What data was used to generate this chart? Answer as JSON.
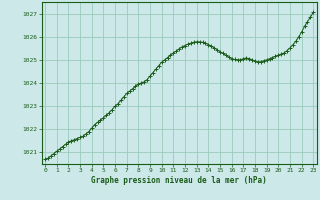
{
  "title": "Graphe pression niveau de la mer (hPa)",
  "background_color": "#cce8e8",
  "grid_color": "#99ccbb",
  "line_color": "#1a5c1a",
  "marker_color": "#1a5c1a",
  "xlim": [
    -0.3,
    23.3
  ],
  "ylim": [
    1020.5,
    1027.5
  ],
  "yticks": [
    1021,
    1022,
    1023,
    1024,
    1025,
    1026,
    1027
  ],
  "xticks": [
    0,
    1,
    2,
    3,
    4,
    5,
    6,
    7,
    8,
    9,
    10,
    11,
    12,
    13,
    14,
    15,
    16,
    17,
    18,
    19,
    20,
    21,
    22,
    23
  ],
  "xlabel": "Graphe pression niveau de la mer (hPa)",
  "hours": [
    0,
    0.25,
    0.5,
    0.75,
    1.0,
    1.25,
    1.5,
    1.75,
    2.0,
    2.25,
    2.5,
    2.75,
    3.0,
    3.25,
    3.5,
    3.75,
    4.0,
    4.25,
    4.5,
    4.75,
    5.0,
    5.25,
    5.5,
    5.75,
    6.0,
    6.25,
    6.5,
    6.75,
    7.0,
    7.25,
    7.5,
    7.75,
    8.0,
    8.25,
    8.5,
    8.75,
    9.0,
    9.25,
    9.5,
    9.75,
    10.0,
    10.25,
    10.5,
    10.75,
    11.0,
    11.25,
    11.5,
    11.75,
    12.0,
    12.25,
    12.5,
    12.75,
    13.0,
    13.25,
    13.5,
    13.75,
    14.0,
    14.25,
    14.5,
    14.75,
    15.0,
    15.25,
    15.5,
    15.75,
    16.0,
    16.25,
    16.5,
    16.75,
    17.0,
    17.25,
    17.5,
    17.75,
    18.0,
    18.25,
    18.5,
    18.75,
    19.0,
    19.25,
    19.5,
    19.75,
    20.0,
    20.25,
    20.5,
    20.75,
    21.0,
    21.25,
    21.5,
    21.75,
    22.0,
    22.25,
    22.5,
    22.75,
    23.0
  ],
  "pressure": [
    1020.7,
    1020.75,
    1020.85,
    1020.95,
    1021.05,
    1021.15,
    1021.25,
    1021.35,
    1021.45,
    1021.5,
    1021.55,
    1021.6,
    1021.65,
    1021.7,
    1021.8,
    1021.9,
    1022.05,
    1022.2,
    1022.3,
    1022.4,
    1022.5,
    1022.6,
    1022.72,
    1022.85,
    1023.0,
    1023.1,
    1023.25,
    1023.4,
    1023.55,
    1023.65,
    1023.75,
    1023.85,
    1023.95,
    1024.0,
    1024.05,
    1024.15,
    1024.3,
    1024.45,
    1024.6,
    1024.75,
    1024.9,
    1025.0,
    1025.1,
    1025.2,
    1025.3,
    1025.38,
    1025.48,
    1025.56,
    1025.62,
    1025.68,
    1025.72,
    1025.76,
    1025.78,
    1025.78,
    1025.76,
    1025.72,
    1025.66,
    1025.6,
    1025.52,
    1025.44,
    1025.35,
    1025.28,
    1025.2,
    1025.12,
    1025.05,
    1025.02,
    1025.0,
    1025.0,
    1025.05,
    1025.08,
    1025.05,
    1025.0,
    1024.95,
    1024.9,
    1024.92,
    1024.96,
    1025.0,
    1025.05,
    1025.1,
    1025.15,
    1025.2,
    1025.25,
    1025.3,
    1025.4,
    1025.52,
    1025.65,
    1025.8,
    1026.0,
    1026.2,
    1026.45,
    1026.65,
    1026.85,
    1027.05
  ]
}
